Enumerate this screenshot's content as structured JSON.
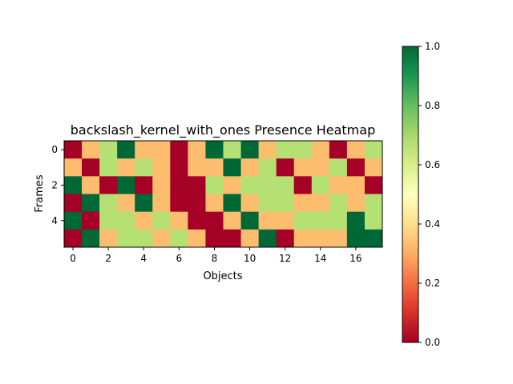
{
  "chart_data": {
    "type": "heatmap",
    "title": "backslash_kernel_with_ones Presence Heatmap",
    "xlabel": "Objects",
    "ylabel": "Frames",
    "x_ticks": [
      0,
      2,
      4,
      6,
      8,
      10,
      12,
      14,
      16
    ],
    "y_ticks": [
      0,
      2,
      4
    ],
    "colormap": "RdYlGn",
    "colorbar": {
      "range": [
        0,
        1
      ],
      "ticks": [
        "0.0",
        "0.2",
        "0.4",
        "0.6",
        "0.8",
        "1.0"
      ]
    },
    "values": [
      [
        0.0,
        0.33,
        0.67,
        1.0,
        0.33,
        0.33,
        0.0,
        0.33,
        1.0,
        0.67,
        1.0,
        0.33,
        0.67,
        0.67,
        0.33,
        0.0,
        0.33,
        0.67
      ],
      [
        0.33,
        0.0,
        0.67,
        0.33,
        0.67,
        0.33,
        0.0,
        0.33,
        0.33,
        1.0,
        0.33,
        0.67,
        0.0,
        0.33,
        0.33,
        0.67,
        0.0,
        0.33
      ],
      [
        1.0,
        0.33,
        0.0,
        1.0,
        0.0,
        0.33,
        0.0,
        0.0,
        0.67,
        0.33,
        0.67,
        0.67,
        0.67,
        0.0,
        0.67,
        0.33,
        0.33,
        0.0
      ],
      [
        0.0,
        1.0,
        0.67,
        0.33,
        1.0,
        0.33,
        0.0,
        0.0,
        0.33,
        1.0,
        0.33,
        0.67,
        0.67,
        0.33,
        0.33,
        0.67,
        0.33,
        0.67
      ],
      [
        1.0,
        0.0,
        0.67,
        0.67,
        0.33,
        0.67,
        0.33,
        0.0,
        0.0,
        0.33,
        1.0,
        0.33,
        0.33,
        0.67,
        0.67,
        0.67,
        1.0,
        0.67
      ],
      [
        0.0,
        1.0,
        0.33,
        0.67,
        0.67,
        0.33,
        0.67,
        0.33,
        0.0,
        0.0,
        0.33,
        1.0,
        0.0,
        0.33,
        0.33,
        0.33,
        1.0,
        1.0
      ]
    ]
  }
}
